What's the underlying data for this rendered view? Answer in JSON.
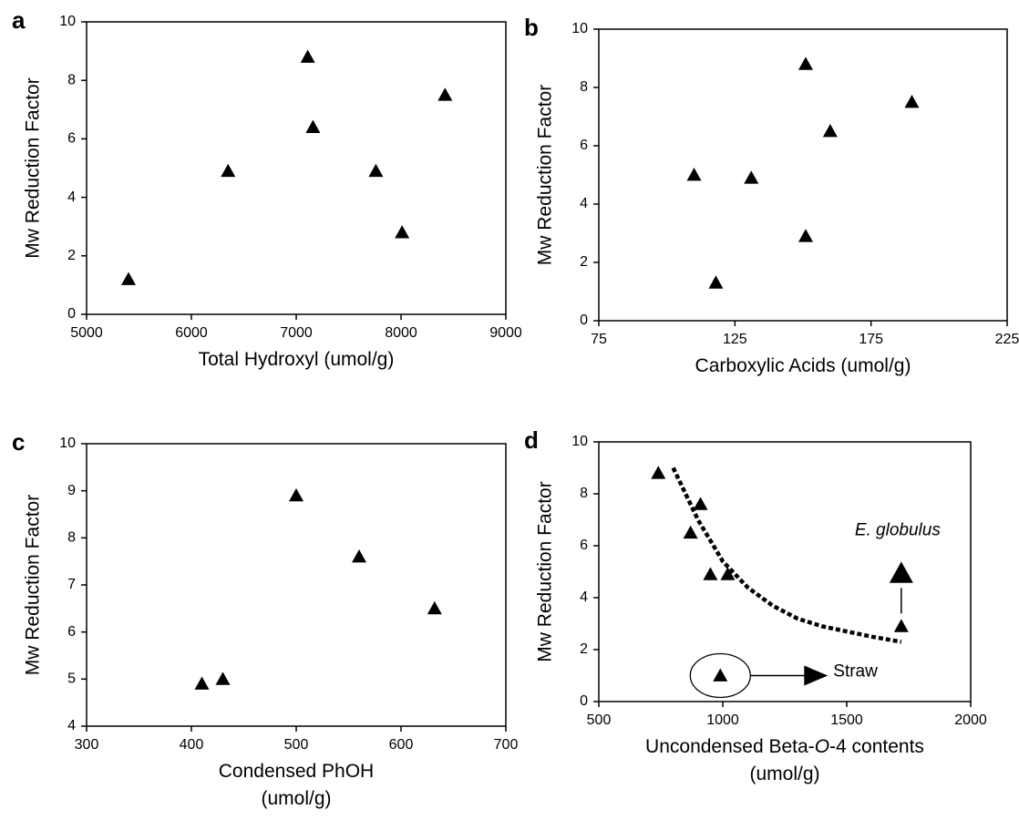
{
  "chart_data": [
    {
      "type": "scatter",
      "label": "a",
      "ylabel": "Mw Reduction Factor",
      "xlabel": [
        [
          "Total Hydroxyl (umol/g)"
        ]
      ],
      "x": [
        5400,
        6350,
        7110,
        7160,
        7760,
        8010,
        8420
      ],
      "values": [
        1.2,
        4.9,
        8.8,
        6.4,
        4.9,
        2.8,
        7.5
      ],
      "color": "#000000",
      "xlim": [
        5000,
        9000
      ],
      "xticks": [
        5000,
        6000,
        7000,
        8000,
        9000
      ],
      "ylim": [
        0,
        10
      ],
      "yticks": [
        0,
        2,
        4,
        6,
        8,
        10
      ]
    },
    {
      "type": "scatter",
      "label": "b",
      "ylabel": "Mw Reduction Factor",
      "xlabel": [
        [
          "Carboxylic Acids (umol/g)"
        ]
      ],
      "x": [
        110,
        118,
        131,
        151,
        151,
        160,
        190
      ],
      "values": [
        5.0,
        1.3,
        4.9,
        8.8,
        2.9,
        6.5,
        7.5
      ],
      "color": "#000000",
      "xlim": [
        75,
        225
      ],
      "xticks": [
        75,
        125,
        175,
        225
      ],
      "ylim": [
        0,
        10
      ],
      "yticks": [
        0,
        2,
        4,
        6,
        8,
        10
      ]
    },
    {
      "type": "scatter",
      "label": "c",
      "ylabel": "Mw Reduction Factor",
      "xlabel": [
        [
          "Condensed PhOH"
        ],
        [
          "(umol/g)"
        ]
      ],
      "x": [
        410,
        430,
        500,
        560,
        632
      ],
      "values": [
        4.9,
        5.0,
        8.9,
        7.6,
        6.5
      ],
      "color": "#000000",
      "xlim": [
        300,
        700
      ],
      "xticks": [
        300,
        400,
        500,
        600,
        700
      ],
      "ylim": [
        4,
        10
      ],
      "yticks": [
        4,
        5,
        6,
        7,
        8,
        9,
        10
      ]
    },
    {
      "type": "scatter",
      "label": "d",
      "ylabel": "Mw Reduction Factor",
      "xlabel": [
        [
          "Uncondensed Beta-",
          "O",
          "-4 contents"
        ],
        [
          "(umol/g)"
        ]
      ],
      "x": [
        740,
        870,
        910,
        950,
        1020,
        1720,
        990
      ],
      "values": [
        8.8,
        6.5,
        7.6,
        4.9,
        4.9,
        2.9,
        1.0
      ],
      "color": "#000000",
      "trend": {
        "x": [
          800,
          900,
          1000,
          1100,
          1200,
          1300,
          1400,
          1500,
          1600,
          1720
        ],
        "values": [
          9.0,
          7.0,
          5.4,
          4.4,
          3.7,
          3.2,
          2.9,
          2.7,
          2.5,
          2.3
        ]
      },
      "annotations": [
        "E. globulus",
        "Straw"
      ],
      "xlim": [
        500,
        2000
      ],
      "xticks": [
        500,
        1000,
        1500,
        2000
      ],
      "ylim": [
        0,
        10
      ],
      "yticks": [
        0,
        2,
        4,
        6,
        8,
        10
      ]
    }
  ]
}
